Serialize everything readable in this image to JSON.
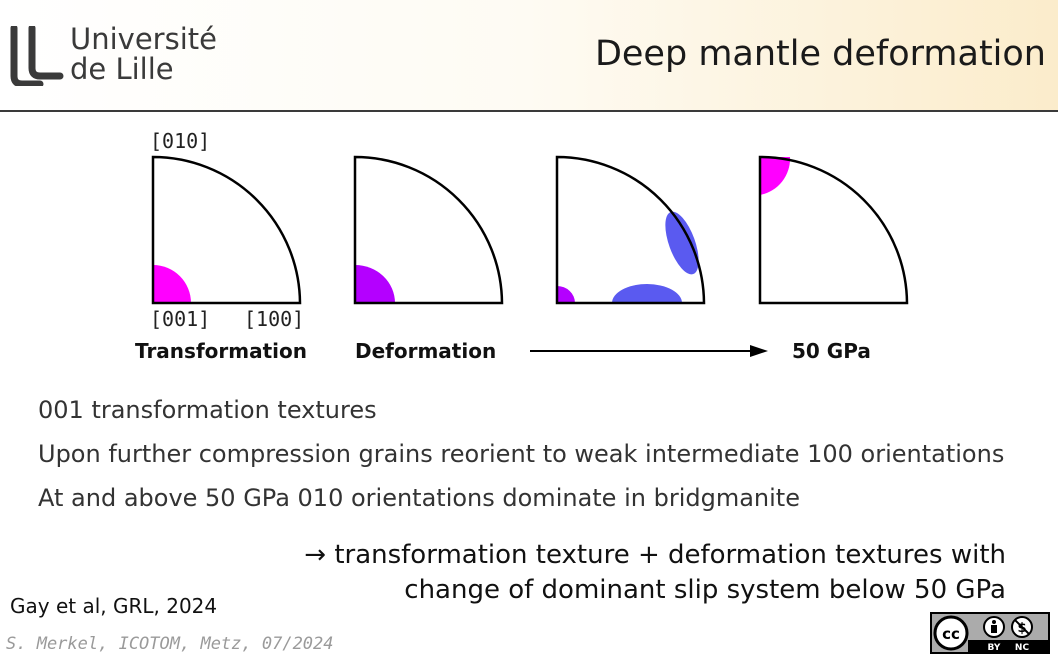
{
  "header": {
    "logo_line1": "Université",
    "logo_line2": "de Lille",
    "title": "Deep mantle deformation"
  },
  "figure": {
    "axis_labels": {
      "top": "[010]",
      "bottom_left": "[001]",
      "bottom_right": "[100]"
    },
    "panel_labels": [
      "Transformation",
      "Deformation",
      "50 GPa"
    ],
    "colors": {
      "magenta": "#ff00ff",
      "purple": "#b400ff",
      "blue": "#5a5af0"
    }
  },
  "bullets": [
    "001 transformation textures",
    "Upon further compression grains reorient to weak intermediate 100 orientations",
    "At and above 50 GPa 010 orientations dominate in bridgmanite"
  ],
  "conclusion": {
    "line1": "→ transformation texture + deformation textures with",
    "line2": "change of dominant slip system below 50 GPa"
  },
  "citation": "Gay et al, GRL, 2024",
  "footer": "S. Merkel, ICOTOM, Metz, 07/2024",
  "license": {
    "by": "BY",
    "nc": "NC",
    "cc": "cc"
  }
}
